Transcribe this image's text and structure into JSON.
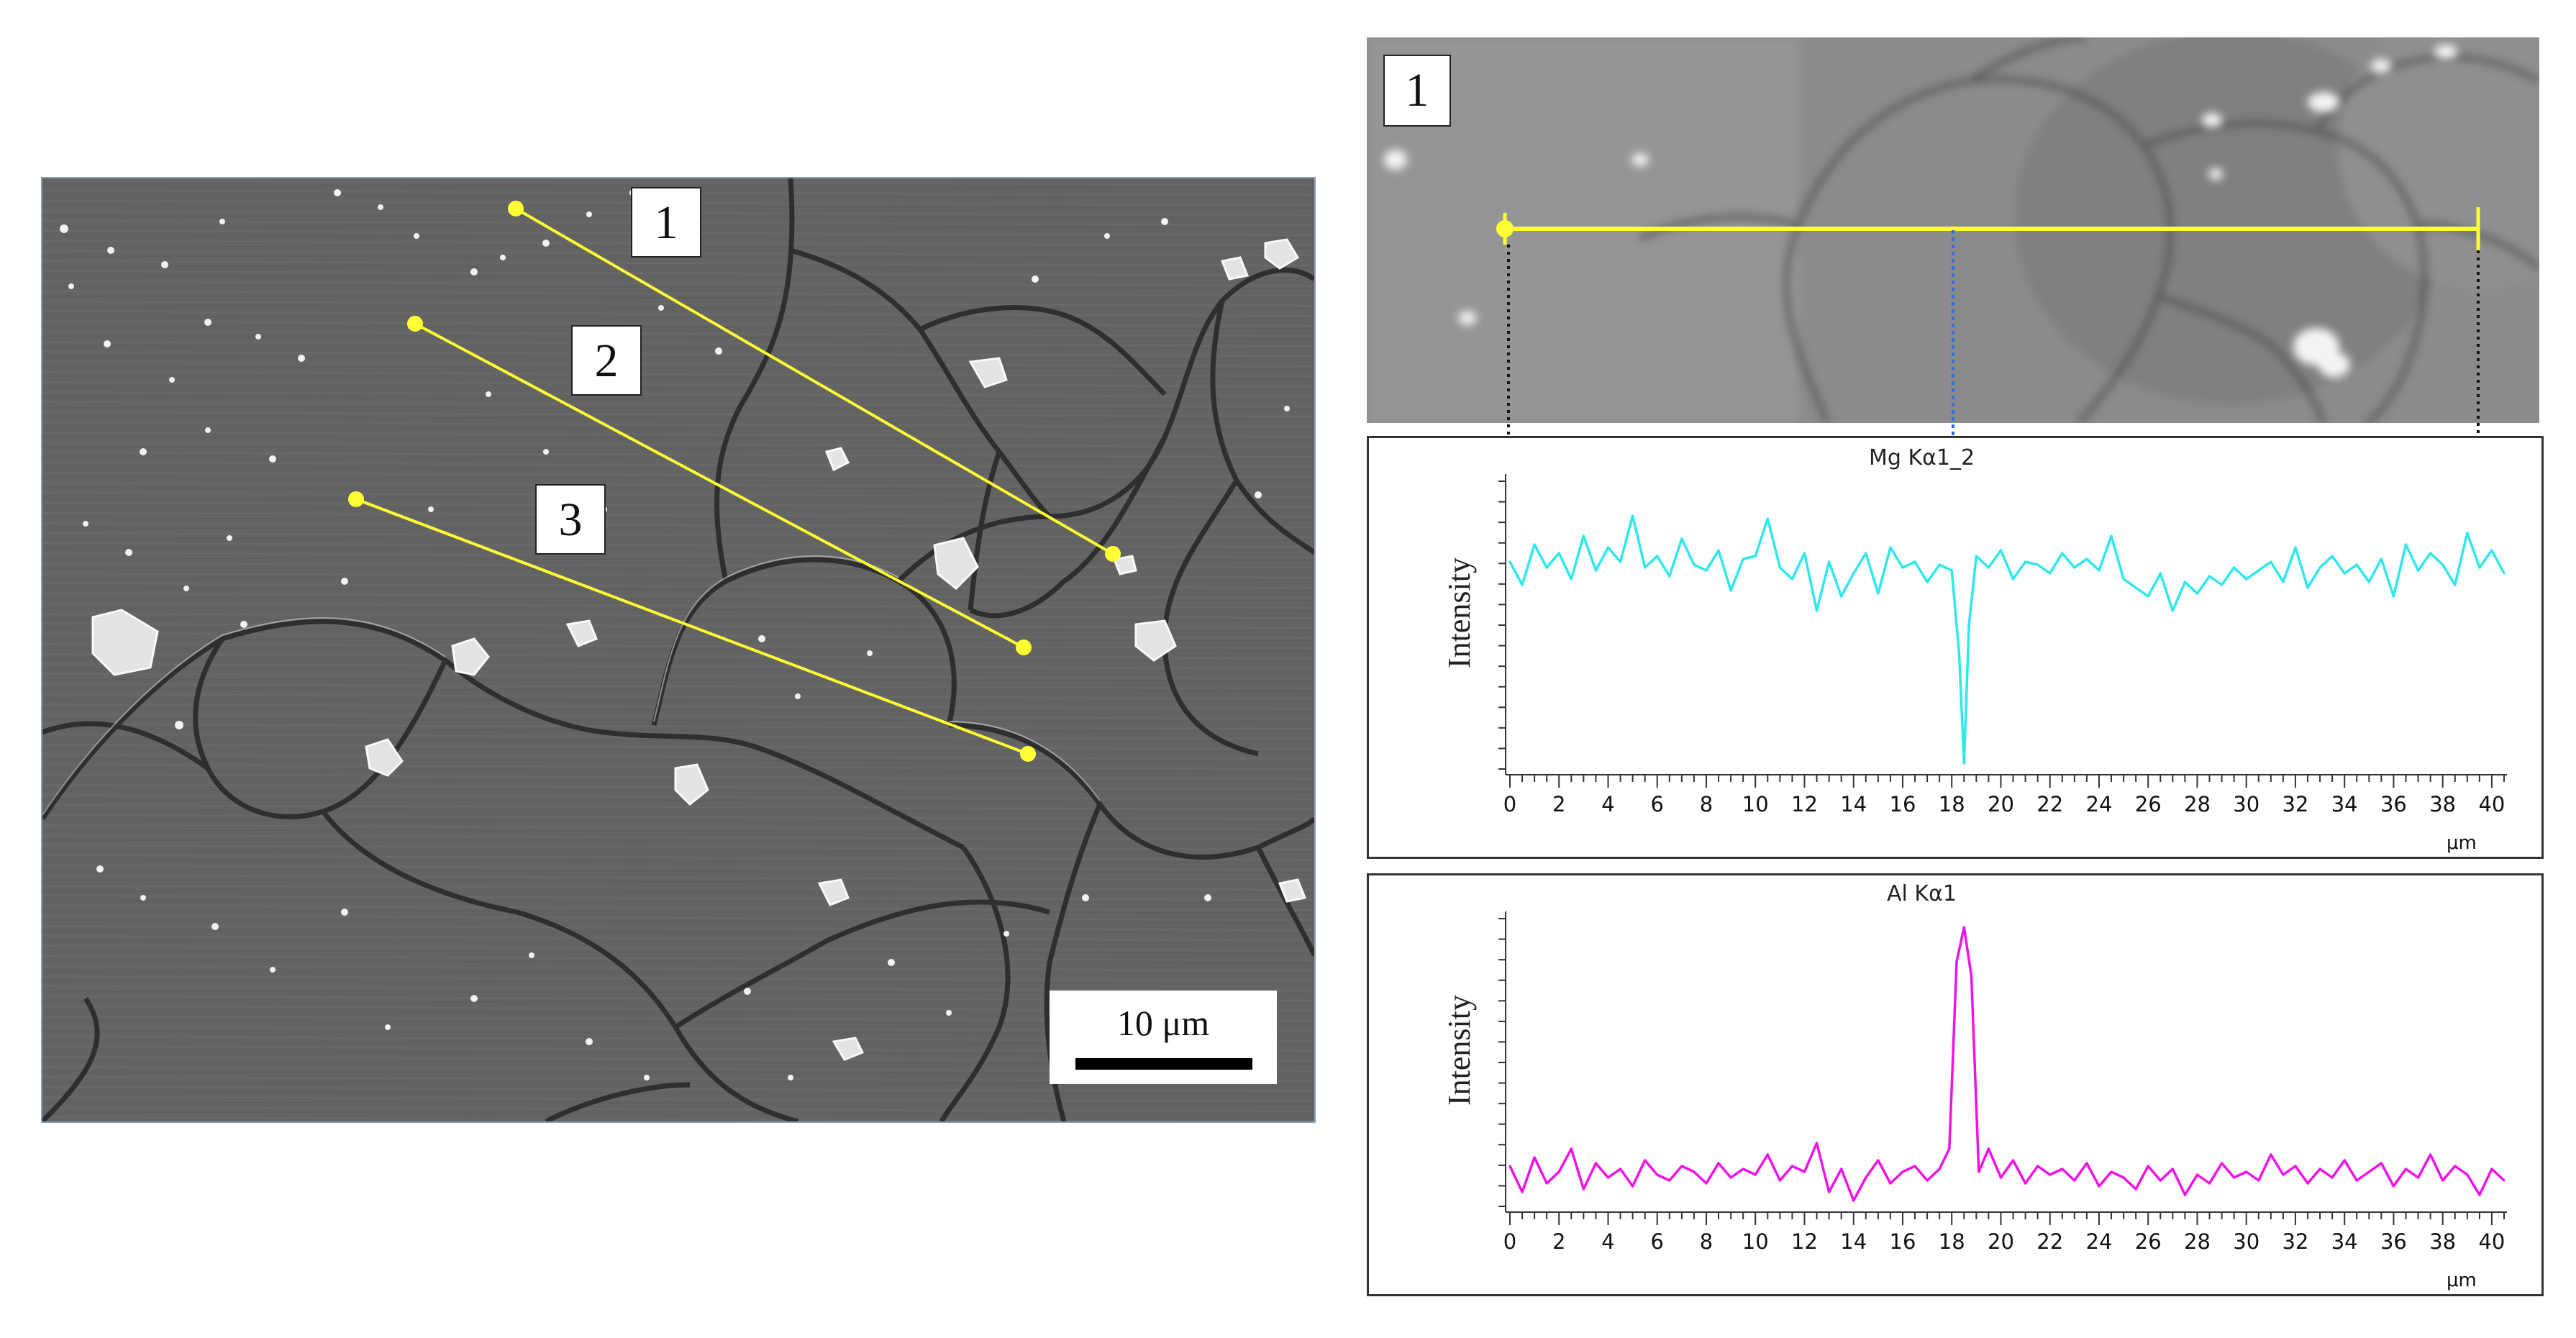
{
  "sem_image": {
    "line_labels": [
      "1",
      "2",
      "3"
    ],
    "scale_bar_label": "10 μm",
    "colors": {
      "linescan": "#ffff33",
      "background": "#626262",
      "grain_boundary": "#2e2e2e",
      "particle": "#e8e8e8"
    }
  },
  "inset": {
    "label": "1",
    "colors": {
      "linescan": "#ffff33",
      "marker": "#2f6fd6"
    }
  },
  "chart_data": [
    {
      "type": "line",
      "title": "Mg Kα1_2",
      "ylabel": "Intensity",
      "xlabel": "μm",
      "xlim": [
        0,
        40.5
      ],
      "x_ticks": [
        0,
        2,
        4,
        6,
        8,
        10,
        12,
        14,
        16,
        18,
        20,
        22,
        24,
        26,
        28,
        30,
        32,
        34,
        36,
        38,
        40
      ],
      "color": "#2ee8ee",
      "grid": false,
      "series": [
        {
          "x": [
            0,
            0.5,
            1,
            1.5,
            2,
            2.5,
            3,
            3.5,
            4,
            4.5,
            5,
            5.5,
            6,
            6.5,
            7,
            7.5,
            8,
            8.5,
            9,
            9.5,
            10,
            10.5,
            11,
            11.5,
            12,
            12.5,
            13,
            13.5,
            14,
            14.5,
            15,
            15.5,
            16,
            16.5,
            17,
            17.5,
            18,
            18.3,
            18.5,
            18.7,
            19,
            19.5,
            20,
            20.5,
            21,
            21.5,
            22,
            22.5,
            23,
            23.5,
            24,
            24.5,
            25,
            25.5,
            26,
            26.5,
            27,
            27.5,
            28,
            28.5,
            29,
            29.5,
            30,
            30.5,
            31,
            31.5,
            32,
            32.5,
            33,
            33.5,
            34,
            34.5,
            35,
            35.5,
            36,
            36.5,
            37,
            37.5,
            38,
            38.5,
            39,
            39.5,
            40,
            40.5
          ],
          "values": [
            0.72,
            0.64,
            0.78,
            0.7,
            0.75,
            0.66,
            0.81,
            0.69,
            0.77,
            0.72,
            0.88,
            0.7,
            0.74,
            0.67,
            0.8,
            0.71,
            0.69,
            0.76,
            0.62,
            0.73,
            0.74,
            0.87,
            0.7,
            0.66,
            0.75,
            0.55,
            0.72,
            0.6,
            0.68,
            0.75,
            0.61,
            0.77,
            0.7,
            0.72,
            0.65,
            0.71,
            0.69,
            0.4,
            0.02,
            0.5,
            0.74,
            0.7,
            0.76,
            0.66,
            0.72,
            0.71,
            0.68,
            0.75,
            0.7,
            0.73,
            0.69,
            0.81,
            0.66,
            0.63,
            0.6,
            0.68,
            0.55,
            0.65,
            0.61,
            0.67,
            0.64,
            0.7,
            0.66,
            0.69,
            0.72,
            0.65,
            0.77,
            0.63,
            0.7,
            0.74,
            0.68,
            0.71,
            0.65,
            0.73,
            0.6,
            0.78,
            0.69,
            0.75,
            0.71,
            0.64,
            0.82,
            0.7,
            0.76,
            0.68
          ]
        }
      ]
    },
    {
      "type": "line",
      "title": "Al Kα1",
      "ylabel": "Intensity",
      "xlabel": "μm",
      "xlim": [
        0,
        40.5
      ],
      "x_ticks": [
        0,
        2,
        4,
        6,
        8,
        10,
        12,
        14,
        16,
        18,
        20,
        22,
        24,
        26,
        28,
        30,
        32,
        34,
        36,
        38,
        40
      ],
      "color": "#f012e8",
      "grid": false,
      "series": [
        {
          "x": [
            0,
            0.5,
            1,
            1.5,
            2,
            2.5,
            3,
            3.5,
            4,
            4.5,
            5,
            5.5,
            6,
            6.5,
            7,
            7.5,
            8,
            8.5,
            9,
            9.5,
            10,
            10.5,
            11,
            11.5,
            12,
            12.5,
            13,
            13.5,
            14,
            14.5,
            15,
            15.5,
            16,
            16.5,
            17,
            17.5,
            17.9,
            18.2,
            18.5,
            18.8,
            19.1,
            19.5,
            20,
            20.5,
            21,
            21.5,
            22,
            22.5,
            23,
            23.5,
            24,
            24.5,
            25,
            25.5,
            26,
            26.5,
            27,
            27.5,
            28,
            28.5,
            29,
            29.5,
            30,
            30.5,
            31,
            31.5,
            32,
            32.5,
            33,
            33.5,
            34,
            34.5,
            35,
            35.5,
            36,
            36.5,
            37,
            37.5,
            38,
            38.5,
            39,
            39.5,
            40,
            40.5
          ],
          "values": [
            0.14,
            0.05,
            0.17,
            0.08,
            0.12,
            0.2,
            0.06,
            0.15,
            0.1,
            0.13,
            0.07,
            0.16,
            0.11,
            0.09,
            0.14,
            0.12,
            0.08,
            0.15,
            0.1,
            0.13,
            0.11,
            0.18,
            0.09,
            0.14,
            0.12,
            0.22,
            0.05,
            0.13,
            0.02,
            0.1,
            0.16,
            0.08,
            0.12,
            0.14,
            0.09,
            0.13,
            0.2,
            0.85,
            0.97,
            0.8,
            0.12,
            0.2,
            0.1,
            0.16,
            0.08,
            0.14,
            0.11,
            0.13,
            0.09,
            0.15,
            0.07,
            0.12,
            0.1,
            0.06,
            0.14,
            0.09,
            0.13,
            0.04,
            0.11,
            0.08,
            0.15,
            0.1,
            0.12,
            0.09,
            0.18,
            0.11,
            0.14,
            0.08,
            0.13,
            0.1,
            0.16,
            0.09,
            0.12,
            0.15,
            0.07,
            0.13,
            0.1,
            0.18,
            0.09,
            0.14,
            0.11,
            0.04,
            0.13,
            0.09
          ]
        }
      ]
    }
  ]
}
